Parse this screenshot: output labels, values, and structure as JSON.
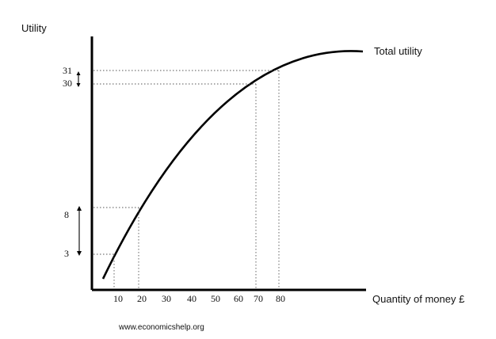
{
  "chart_data": {
    "type": "line",
    "ylabel": "Utility",
    "xlabel": "Quantity  of money £",
    "curve_label": "Total utility",
    "x_ticks": [
      "10",
      "20",
      "30",
      "40",
      "50",
      "60",
      "70",
      "80"
    ],
    "y_ticks": [
      "3",
      "8",
      "30",
      "31"
    ],
    "points": [
      {
        "x": 10,
        "y": 3
      },
      {
        "x": 20,
        "y": 8
      },
      {
        "x": 70,
        "y": 30
      },
      {
        "x": 80,
        "y": 31
      }
    ],
    "y_change_markers": [
      {
        "from": "30",
        "to": "31"
      },
      {
        "from": "3",
        "to": "8"
      }
    ]
  },
  "footer": {
    "credit": "www.economicshelp.org"
  }
}
